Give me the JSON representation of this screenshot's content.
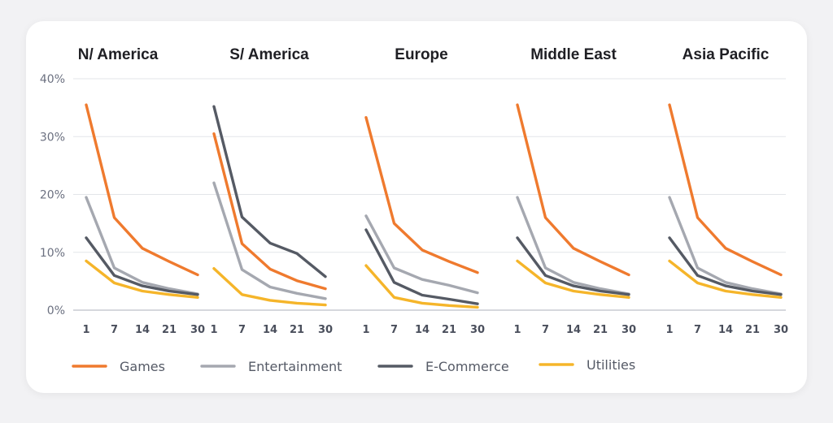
{
  "chart_data": {
    "type": "line",
    "x": [
      "1",
      "7",
      "14",
      "21",
      "30"
    ],
    "y_ticks": [
      "0%",
      "10%",
      "20%",
      "30%",
      "40%"
    ],
    "ylim": [
      0,
      40
    ],
    "grid": true,
    "legend_placement": "bottom",
    "colors": {
      "Games": "#ef7a2e",
      "Entertainment": "#a5a8b0",
      "E-Commerce": "#555a64",
      "Utilities": "#f5b52a"
    },
    "legend": [
      "Games",
      "Entertainment",
      "E-Commerce",
      "Utilities"
    ],
    "panels": [
      {
        "title": "N/ America",
        "series": [
          {
            "name": "Games",
            "values": [
              35.5,
              16,
              10.7,
              8.4,
              6.1
            ]
          },
          {
            "name": "Entertainment",
            "values": [
              19.5,
              7.3,
              4.8,
              3.7,
              2.8
            ]
          },
          {
            "name": "E-Commerce",
            "values": [
              12.5,
              6,
              4.2,
              3.3,
              2.7
            ]
          },
          {
            "name": "Utilities",
            "values": [
              8.5,
              4.7,
              3.3,
              2.7,
              2.2
            ]
          }
        ]
      },
      {
        "title": "S/ America",
        "series": [
          {
            "name": "Games",
            "values": [
              30.5,
              11.5,
              7.1,
              5.1,
              3.7
            ]
          },
          {
            "name": "Entertainment",
            "values": [
              22,
              7,
              4,
              2.9,
              2
            ]
          },
          {
            "name": "E-Commerce",
            "values": [
              35.2,
              16.1,
              11.6,
              9.8,
              5.8
            ]
          },
          {
            "name": "Utilities",
            "values": [
              7.2,
              2.7,
              1.7,
              1.2,
              0.9
            ]
          }
        ]
      },
      {
        "title": "Europe",
        "series": [
          {
            "name": "Games",
            "values": [
              33.3,
              15,
              10.4,
              8.4,
              6.5
            ]
          },
          {
            "name": "Entertainment",
            "values": [
              16.3,
              7.3,
              5.3,
              4.3,
              3
            ]
          },
          {
            "name": "E-Commerce",
            "values": [
              13.9,
              4.8,
              2.6,
              1.9,
              1.1
            ]
          },
          {
            "name": "Utilities",
            "values": [
              7.7,
              2.2,
              1.2,
              0.8,
              0.5
            ]
          }
        ]
      },
      {
        "title": "Middle East",
        "series": [
          {
            "name": "Games",
            "values": [
              35.5,
              16,
              10.7,
              8.4,
              6.1
            ]
          },
          {
            "name": "Entertainment",
            "values": [
              19.5,
              7.3,
              4.8,
              3.7,
              2.8
            ]
          },
          {
            "name": "E-Commerce",
            "values": [
              12.5,
              6,
              4.2,
              3.3,
              2.7
            ]
          },
          {
            "name": "Utilities",
            "values": [
              8.5,
              4.7,
              3.3,
              2.7,
              2.2
            ]
          }
        ]
      },
      {
        "title": "Asia Pacific",
        "series": [
          {
            "name": "Games",
            "values": [
              35.5,
              16,
              10.7,
              8.4,
              6.1
            ]
          },
          {
            "name": "Entertainment",
            "values": [
              19.5,
              7.3,
              4.8,
              3.7,
              2.8
            ]
          },
          {
            "name": "E-Commerce",
            "values": [
              12.5,
              6,
              4.2,
              3.3,
              2.7
            ]
          },
          {
            "name": "Utilities",
            "values": [
              8.5,
              4.7,
              3.3,
              2.7,
              2.2
            ]
          }
        ]
      }
    ]
  }
}
